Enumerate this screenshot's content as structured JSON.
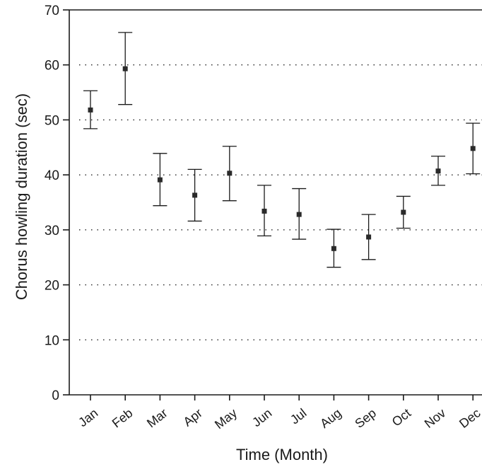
{
  "chart_data": {
    "type": "scatter",
    "xlabel": "Time (Month)",
    "ylabel": "Chorus howling duration (sec)",
    "ylim": [
      0,
      70
    ],
    "yticks": [
      0,
      10,
      20,
      30,
      40,
      50,
      60,
      70
    ],
    "grid": "horizontal dotted",
    "categories": [
      "Jan",
      "Feb",
      "Mar",
      "Apr",
      "May",
      "Jun",
      "Jul",
      "Aug",
      "Sep",
      "Oct",
      "Nov",
      "Dec"
    ],
    "series": [
      {
        "values": [
          51.8,
          59.3,
          39.1,
          36.3,
          40.3,
          33.4,
          32.8,
          26.6,
          28.7,
          33.2,
          40.7,
          44.8
        ],
        "error_low": [
          48.4,
          52.8,
          34.4,
          31.6,
          35.3,
          28.9,
          28.3,
          23.2,
          24.6,
          30.3,
          38.1,
          40.2
        ],
        "error_high": [
          55.3,
          65.9,
          43.9,
          41.0,
          45.2,
          38.1,
          37.5,
          30.1,
          32.8,
          36.1,
          43.4,
          49.4
        ]
      }
    ]
  }
}
